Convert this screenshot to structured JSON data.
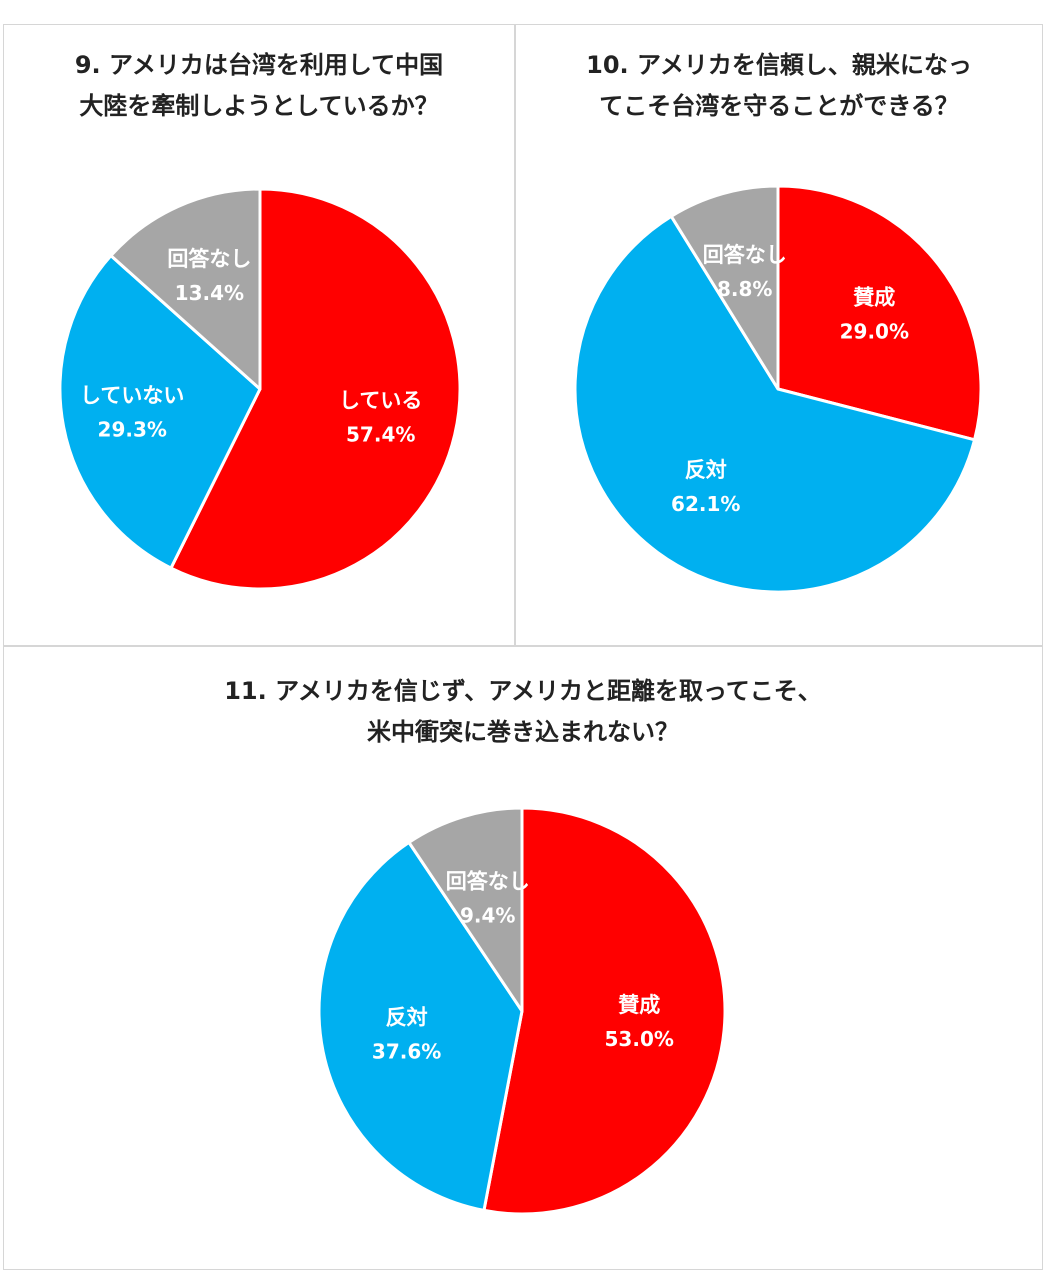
{
  "chart_data": [
    {
      "type": "pie",
      "title_lines": [
        "9. アメリカは台湾を利用して中国",
        "大陸を牽制しようとしているか？"
      ],
      "slices": [
        {
          "label": "している",
          "value": 57.4,
          "display": "57.4%",
          "color": "#ff0000"
        },
        {
          "label": "していない",
          "value": 29.3,
          "display": "29.3%",
          "color": "#00b0f0"
        },
        {
          "label": "回答なし",
          "value": 13.4,
          "display": "13.4%",
          "color": "#a6a6a6"
        }
      ]
    },
    {
      "type": "pie",
      "title_lines": [
        "10. アメリカを信頼し、親米になっ",
        "てこそ台湾を守ることができる？"
      ],
      "slices": [
        {
          "label": "賛成",
          "value": 29.0,
          "display": "29.0%",
          "color": "#ff0000"
        },
        {
          "label": "反対",
          "value": 62.1,
          "display": "62.1%",
          "color": "#00b0f0"
        },
        {
          "label": "回答なし",
          "value": 8.8,
          "display": "8.8%",
          "color": "#a6a6a6"
        }
      ]
    },
    {
      "type": "pie",
      "title_lines": [
        "11. アメリカを信じず、アメリカと距離を取ってこそ、",
        "米中衝突に巻き込まれない？"
      ],
      "slices": [
        {
          "label": "賛成",
          "value": 53.0,
          "display": "53.0%",
          "color": "#ff0000"
        },
        {
          "label": "反対",
          "value": 37.6,
          "display": "37.6%",
          "color": "#00b0f0"
        },
        {
          "label": "回答なし",
          "value": 9.4,
          "display": "9.4%",
          "color": "#a6a6a6"
        }
      ]
    }
  ]
}
